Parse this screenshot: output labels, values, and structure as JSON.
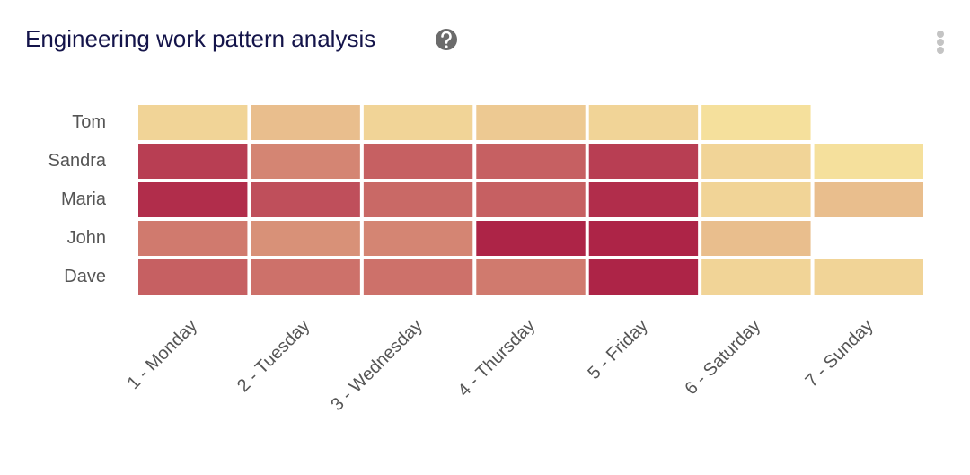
{
  "chart_data": {
    "type": "heatmap",
    "title": "Engineering work pattern analysis",
    "categories": [
      "1 - Monday",
      "2 - Tuesday",
      "3 - Wednesday",
      "4 - Thursday",
      "5 - Friday",
      "6 - Saturday",
      "7 - Sunday"
    ],
    "y_categories": [
      "Tom",
      "Sandra",
      "Maria",
      "John",
      "Dave"
    ],
    "values": [
      [
        1,
        2,
        1,
        1.5,
        1,
        0.5,
        null
      ],
      [
        8.5,
        4.5,
        6.5,
        6.5,
        8.5,
        1,
        0.5
      ],
      [
        9.5,
        7.5,
        6,
        6.5,
        9.5,
        1,
        2
      ],
      [
        5,
        4,
        4.5,
        10,
        10,
        2,
        null
      ],
      [
        6.5,
        5.5,
        5.5,
        5,
        10,
        1,
        1
      ]
    ],
    "zlim": [
      0,
      10
    ],
    "colors": [
      "#f9eba1",
      "#d07a6e",
      "#ad2447"
    ]
  }
}
